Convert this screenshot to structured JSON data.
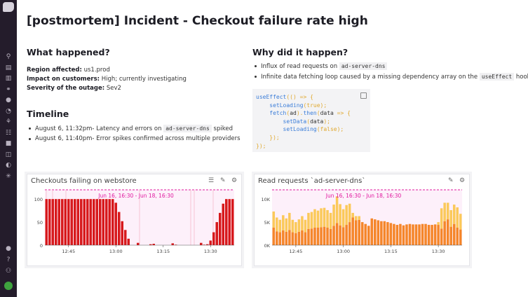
{
  "sidebar": {
    "icons": [
      "binoculars-icon",
      "list-icon",
      "chart-icon",
      "infrastructure-icon",
      "alert-icon",
      "gauge-icon",
      "apm-icon",
      "logs-icon",
      "notebook-icon",
      "security-icon",
      "monitor-icon",
      "integrations-icon"
    ],
    "bottom_icons": [
      "chat-icon",
      "help-icon",
      "team-icon",
      "user-avatar"
    ]
  },
  "title": "[postmortem] Incident - Checkout failure rate high",
  "what": {
    "heading": "What happened?",
    "rows": [
      {
        "label": "Region affected:",
        "value": " us1.prod"
      },
      {
        "label": "Impact on customers:",
        "value": " High; currently investigating"
      },
      {
        "label": "Severity of the outage:",
        "value": " Sev2"
      }
    ]
  },
  "timeline": {
    "heading": "Timeline",
    "items": [
      {
        "pre": "August 6, 11:32pm- Latency and errors on ",
        "code": "ad-server-dns",
        "post": " spiked"
      },
      {
        "pre": "August 6, 11:40pm- Error spikes confirmed across multiple providers",
        "code": "",
        "post": ""
      }
    ]
  },
  "why": {
    "heading": "Why did it happen?",
    "items": [
      {
        "pre": "Influx of read requests on ",
        "code": "ad-server-dns",
        "post": ""
      },
      {
        "pre": "Infinite data fetching loop caused by a missing dependency array on the ",
        "code": "useEffect",
        "post": " hook"
      }
    ]
  },
  "colors": {
    "red": "#d7191c",
    "orange": "#f5862a",
    "yellow": "#fbc95a",
    "magenta": "#e0179e"
  },
  "chart_data": [
    {
      "type": "bar",
      "title": "Checkouts failing on webstore",
      "annotation": "Jun 16, 16:30 - Jun 18, 16:30",
      "x_start": "12:38",
      "x_step_minutes": 1,
      "x_ticks": [
        "12:45",
        "13:00",
        "13:15",
        "13:30"
      ],
      "y_ticks": [
        "0",
        "50",
        "100"
      ],
      "ylim": [
        0,
        120
      ],
      "values": [
        100,
        100,
        100,
        100,
        100,
        100,
        100,
        100,
        100,
        100,
        100,
        100,
        100,
        100,
        100,
        100,
        100,
        100,
        100,
        100,
        100,
        100,
        92,
        72,
        52,
        33,
        14,
        0,
        0,
        5,
        0,
        0,
        0,
        2,
        3,
        0,
        0,
        0,
        0,
        0,
        4,
        1,
        0,
        0,
        0,
        0,
        0,
        0,
        0,
        5,
        1,
        2,
        10,
        28,
        50,
        70,
        90,
        100,
        100,
        100
      ]
    },
    {
      "type": "bar",
      "stacked": true,
      "title": "Read requests `ad-server-dns`",
      "annotation": "Jun 16, 16:30 - Jun 18, 16:30",
      "x_start": "12:38",
      "x_step_minutes": 1,
      "x_ticks": [
        "12:45",
        "13:00",
        "13:15",
        "13:30"
      ],
      "y_ticks": [
        "0K",
        "5K",
        "10K"
      ],
      "ylim": [
        0,
        12
      ],
      "series": [
        {
          "values": [
            3.8,
            3.0,
            2.8,
            3.2,
            2.9,
            3.3,
            2.8,
            2.6,
            2.9,
            3.2,
            2.8,
            3.5,
            3.6,
            3.8,
            3.8,
            3.9,
            4.0,
            3.8,
            3.5,
            4.2,
            4.8,
            4.3,
            3.9,
            4.4,
            5.0,
            6.0,
            5.4,
            5.5,
            5.0,
            4.6,
            4.2,
            5.8,
            5.6,
            5.4,
            5.2,
            5.2,
            5.0,
            4.8,
            4.6,
            4.4,
            4.6,
            4.3,
            4.5,
            4.6,
            4.5,
            4.5,
            4.5,
            4.6,
            4.6,
            4.4,
            4.4,
            4.5,
            4.4,
            3.6,
            5.2,
            5.6,
            4.0,
            4.6,
            3.8,
            3.4
          ]
        },
        {
          "values": [
            3.5,
            3.0,
            2.7,
            3.3,
            2.9,
            3.7,
            2.7,
            2.4,
            2.7,
            3.1,
            2.7,
            3.5,
            3.6,
            4.0,
            3.7,
            4.1,
            4.1,
            3.8,
            3.5,
            4.6,
            5.8,
            4.6,
            3.9,
            4.3,
            4.0,
            1.0,
            0.9,
            0.8,
            0,
            0,
            0,
            0,
            0,
            0,
            0,
            0,
            0,
            0,
            0,
            0,
            0,
            0,
            0,
            0,
            0,
            0,
            0,
            0,
            0,
            0,
            0,
            0,
            0.6,
            4.4,
            4.0,
            3.6,
            3.6,
            4.2,
            4.4,
            3.4
          ]
        }
      ]
    }
  ]
}
